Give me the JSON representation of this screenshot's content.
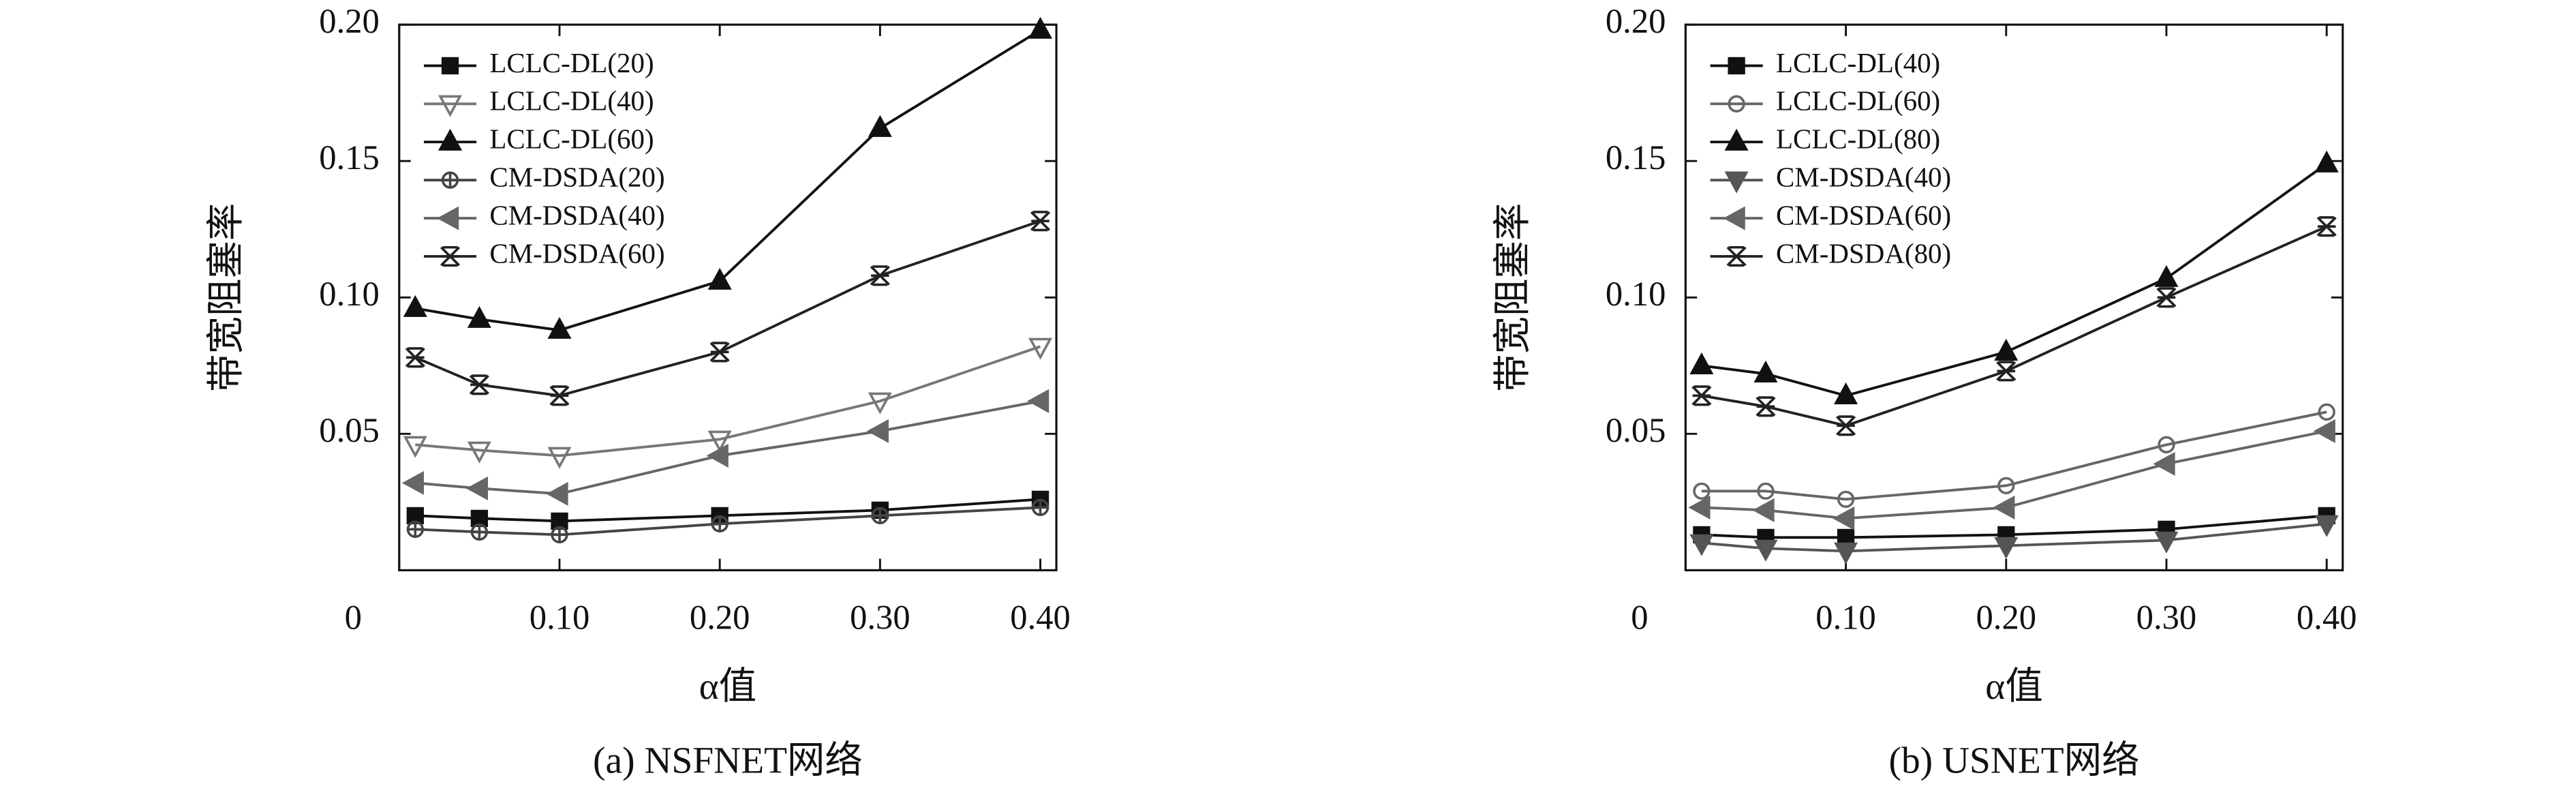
{
  "chart_data": [
    {
      "type": "line",
      "title": "(a) NSFNET网络",
      "xlabel": "α值",
      "ylabel": "带宽阻塞率",
      "x": [
        0.01,
        0.05,
        0.1,
        0.2,
        0.3,
        0.4
      ],
      "xlim": [
        0,
        0.41
      ],
      "xticks": [
        0,
        {
          "value": 0.1,
          "label": "0.10"
        },
        {
          "value": 0.2,
          "label": "0.20"
        },
        {
          "value": 0.3,
          "label": "0.30"
        },
        {
          "value": 0.4,
          "label": "0.40"
        }
      ],
      "ylim": [
        0,
        0.2
      ],
      "yticks": [
        {
          "value": 0.05,
          "label": "0.05"
        },
        {
          "value": 0.1,
          "label": "0.10"
        },
        {
          "value": 0.15,
          "label": "0.15"
        },
        {
          "value": 0.2,
          "label": "0.20"
        }
      ],
      "legend": "upper left",
      "series": [
        {
          "name": "LCLC-DL(20)",
          "color": "#111111",
          "marker": "square",
          "values": [
            0.02,
            0.019,
            0.018,
            0.02,
            0.022,
            0.026
          ]
        },
        {
          "name": "LCLC-DL(40)",
          "color": "#777777",
          "marker": "triangle-down-open",
          "values": [
            0.046,
            0.044,
            0.042,
            0.048,
            0.062,
            0.082
          ]
        },
        {
          "name": "LCLC-DL(60)",
          "color": "#111111",
          "marker": "triangle-up",
          "values": [
            0.096,
            0.092,
            0.088,
            0.106,
            0.162,
            0.198
          ]
        },
        {
          "name": "CM-DSDA(20)",
          "color": "#444444",
          "marker": "circle-plus",
          "values": [
            0.015,
            0.014,
            0.013,
            0.017,
            0.02,
            0.023
          ]
        },
        {
          "name": "CM-DSDA(40)",
          "color": "#666666",
          "marker": "triangle-left",
          "values": [
            0.032,
            0.03,
            0.028,
            0.042,
            0.051,
            0.062
          ]
        },
        {
          "name": "CM-DSDA(60)",
          "color": "#222222",
          "marker": "star",
          "values": [
            0.078,
            0.068,
            0.064,
            0.08,
            0.108,
            0.128
          ]
        }
      ]
    },
    {
      "type": "line",
      "title": "(b) USNET网络",
      "xlabel": "α值",
      "ylabel": "带宽阻塞率",
      "x": [
        0.01,
        0.05,
        0.1,
        0.2,
        0.3,
        0.4
      ],
      "xlim": [
        0,
        0.41
      ],
      "xticks": [
        0,
        {
          "value": 0.1,
          "label": "0.10"
        },
        {
          "value": 0.2,
          "label": "0.20"
        },
        {
          "value": 0.3,
          "label": "0.30"
        },
        {
          "value": 0.4,
          "label": "0.40"
        }
      ],
      "ylim": [
        0,
        0.2
      ],
      "yticks": [
        {
          "value": 0.05,
          "label": "0.05"
        },
        {
          "value": 0.1,
          "label": "0.10"
        },
        {
          "value": 0.15,
          "label": "0.15"
        },
        {
          "value": 0.2,
          "label": "0.20"
        }
      ],
      "legend": "upper left",
      "series": [
        {
          "name": "LCLC-DL(40)",
          "color": "#111111",
          "marker": "square",
          "values": [
            0.013,
            0.012,
            0.012,
            0.013,
            0.015,
            0.02
          ]
        },
        {
          "name": "LCLC-DL(60)",
          "color": "#666666",
          "marker": "circle-open",
          "values": [
            0.029,
            0.029,
            0.026,
            0.031,
            0.046,
            0.058
          ]
        },
        {
          "name": "LCLC-DL(80)",
          "color": "#111111",
          "marker": "triangle-up",
          "values": [
            0.075,
            0.072,
            0.064,
            0.08,
            0.107,
            0.149
          ]
        },
        {
          "name": "CM-DSDA(40)",
          "color": "#555555",
          "marker": "triangle-down",
          "values": [
            0.01,
            0.008,
            0.007,
            0.009,
            0.011,
            0.017
          ]
        },
        {
          "name": "CM-DSDA(60)",
          "color": "#666666",
          "marker": "triangle-left",
          "values": [
            0.023,
            0.022,
            0.019,
            0.023,
            0.039,
            0.051
          ]
        },
        {
          "name": "CM-DSDA(80)",
          "color": "#222222",
          "marker": "star",
          "values": [
            0.064,
            0.06,
            0.053,
            0.073,
            0.1,
            0.126
          ]
        }
      ]
    }
  ]
}
